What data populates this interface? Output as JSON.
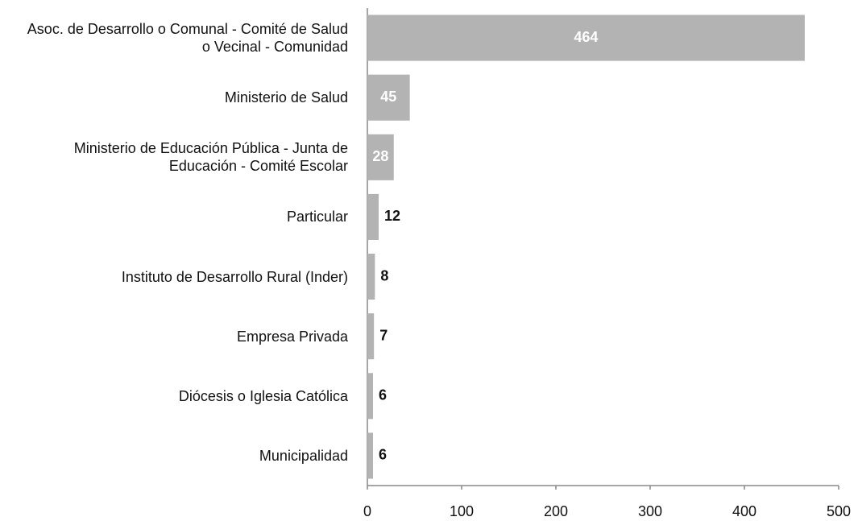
{
  "chart_data": {
    "type": "bar",
    "orientation": "horizontal",
    "categories": [
      "Asoc. de Desarrollo o Comunal - Comité de Salud o Vecinal - Comunidad",
      "Ministerio de Salud",
      "Ministerio de Educación Pública - Junta de Educación - Comité Escolar",
      "Particular",
      "Instituto de Desarrollo Rural (Inder)",
      "Empresa Privada",
      "Diócesis o Iglesia Católica",
      "Municipalidad"
    ],
    "values": [
      464,
      45,
      28,
      12,
      8,
      7,
      6,
      6
    ],
    "color": "#b3b3b3",
    "xlim": [
      0,
      500
    ],
    "xticks": [
      0,
      100,
      200,
      300,
      400,
      500
    ]
  }
}
